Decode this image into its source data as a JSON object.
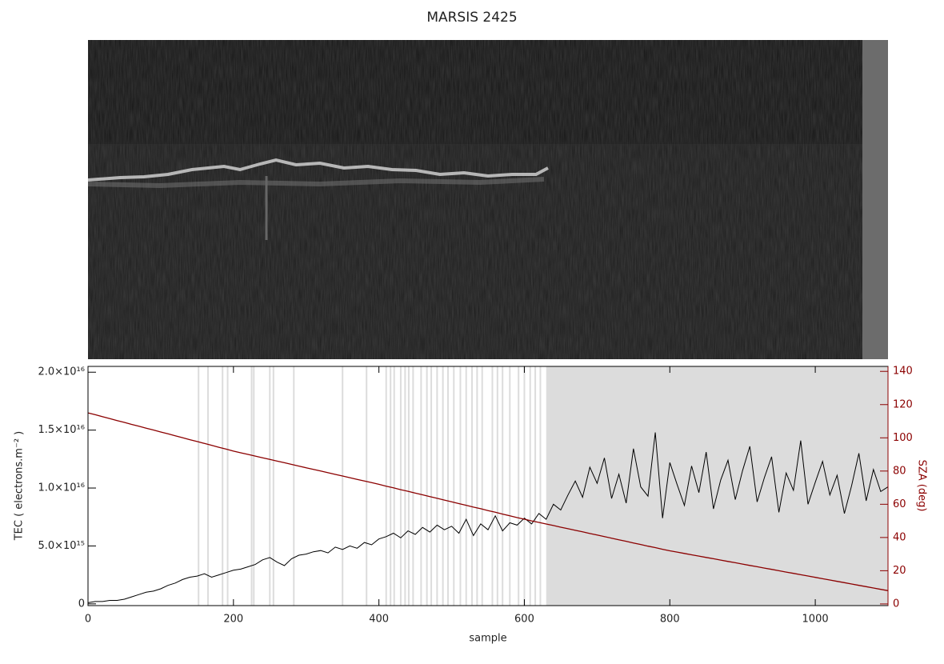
{
  "chart_data": {
    "type": "line",
    "title": "MARSIS 2425",
    "xlabel": "sample",
    "ylabel": "TEC ( electrons.m⁻² )",
    "y2label": "SZA (deg)",
    "xlim": [
      0,
      1100
    ],
    "xticks": [
      0,
      200,
      400,
      600,
      800,
      1000
    ],
    "ylim": [
      -150000000000000.0,
      2.05e+16
    ],
    "yticks": [
      0,
      {
        "value": 5000000000000000.0,
        "label": "5.0×10¹⁵"
      },
      {
        "value": 1e+16,
        "label": "1.0×10¹⁶"
      },
      {
        "value": 1.5e+16,
        "label": "1.5×10¹⁶"
      },
      {
        "value": 2e+16,
        "label": "2.0×10¹⁶"
      }
    ],
    "y2lim": [
      -1,
      143
    ],
    "y2ticks": [
      0,
      20,
      40,
      60,
      80,
      100,
      120,
      140
    ],
    "flagged_samples": [
      152,
      165,
      185,
      192,
      225,
      228,
      250,
      255,
      283,
      350,
      383,
      410,
      416,
      421,
      430,
      436,
      441,
      447,
      458,
      466,
      472,
      480,
      488,
      495,
      503,
      512,
      520,
      528,
      535,
      542,
      556,
      563,
      570,
      580,
      592,
      600,
      608,
      615,
      622
    ],
    "flagged_span": [
      630,
      1100
    ],
    "flag_color": "#dcdcdc",
    "x": [
      0,
      10,
      20,
      30,
      40,
      50,
      60,
      70,
      80,
      90,
      100,
      110,
      120,
      130,
      140,
      150,
      160,
      170,
      180,
      190,
      200,
      210,
      220,
      230,
      240,
      250,
      260,
      270,
      280,
      290,
      300,
      310,
      320,
      330,
      340,
      350,
      360,
      370,
      380,
      390,
      400,
      410,
      420,
      430,
      440,
      450,
      460,
      470,
      480,
      490,
      500,
      510,
      520,
      530,
      540,
      550,
      560,
      570,
      580,
      590,
      600,
      610,
      620,
      630,
      640,
      650,
      660,
      670,
      680,
      690,
      700,
      710,
      720,
      730,
      740,
      750,
      760,
      770,
      780,
      790,
      800,
      810,
      820,
      830,
      840,
      850,
      860,
      870,
      880,
      890,
      900,
      910,
      920,
      930,
      940,
      950,
      960,
      970,
      980,
      990,
      1000,
      1010,
      1020,
      1030,
      1040,
      1050,
      1060,
      1070,
      1080,
      1090,
      1100
    ],
    "series": [
      {
        "name": "TEC",
        "color": "#000000",
        "values": [
          100000000000000.0,
          200000000000000.0,
          200000000000000.0,
          300000000000000.0,
          300000000000000.0,
          400000000000000.0,
          600000000000000.0,
          800000000000000.0,
          1000000000000000.0,
          1100000000000000.0,
          1300000000000000.0,
          1600000000000000.0,
          1800000000000000.0,
          2100000000000000.0,
          2300000000000000.0,
          2400000000000000.0,
          2600000000000000.0,
          2300000000000000.0,
          2500000000000000.0,
          2700000000000000.0,
          2900000000000000.0,
          3000000000000000.0,
          3200000000000000.0,
          3400000000000000.0,
          3800000000000000.0,
          4000000000000000.0,
          3600000000000000.0,
          3300000000000000.0,
          3900000000000000.0,
          4200000000000000.0,
          4300000000000000.0,
          4500000000000000.0,
          4600000000000000.0,
          4400000000000000.0,
          4900000000000000.0,
          4700000000000000.0,
          5000000000000000.0,
          4800000000000000.0,
          5300000000000000.0,
          5100000000000000.0,
          5600000000000000.0,
          5800000000000000.0,
          6100000000000000.0,
          5700000000000000.0,
          6300000000000000.0,
          6000000000000000.0,
          6600000000000000.0,
          6200000000000000.0,
          6800000000000000.0,
          6400000000000000.0,
          6700000000000000.0,
          6100000000000000.0,
          7300000000000000.0,
          5900000000000000.0,
          6900000000000000.0,
          6400000000000000.0,
          7600000000000000.0,
          6300000000000000.0,
          7000000000000000.0,
          6800000000000000.0,
          7400000000000000.0,
          6900000000000000.0,
          7800000000000000.0,
          7300000000000000.0,
          8600000000000000.0,
          8100000000000000.0,
          9400000000000000.0,
          1.06e+16,
          9200000000000000.0,
          1.18e+16,
          1.04e+16,
          1.26e+16,
          9100000000000000.0,
          1.12e+16,
          8700000000000000.0,
          1.34e+16,
          1.01e+16,
          9300000000000000.0,
          1.48e+16,
          7400000000000000.0,
          1.22e+16,
          1.03e+16,
          8500000000000000.0,
          1.19e+16,
          9600000000000000.0,
          1.31e+16,
          8200000000000000.0,
          1.07e+16,
          1.24e+16,
          9000000000000000.0,
          1.15e+16,
          1.36e+16,
          8800000000000000.0,
          1.09e+16,
          1.27e+16,
          7900000000000000.0,
          1.13e+16,
          9800000000000000.0,
          1.41e+16,
          8600000000000000.0,
          1.05e+16,
          1.23e+16,
          9400000000000000.0,
          1.11e+16,
          7800000000000000.0,
          1.02e+16,
          1.3e+16,
          8900000000000000.0,
          1.16e+16,
          9700000000000000.0,
          1.01e+16
        ]
      },
      {
        "name": "SZA",
        "axis": "y2",
        "color": "#8b0000",
        "values": [
          115,
          113.9,
          112.7,
          111.6,
          110.4,
          109.3,
          108.1,
          107,
          105.8,
          104.7,
          103.5,
          102.4,
          101.2,
          100.1,
          98.9,
          97.8,
          96.6,
          95.5,
          94.3,
          93.2,
          92,
          91,
          90,
          89,
          88,
          87,
          86,
          85,
          84,
          83,
          82,
          81,
          80,
          79,
          78,
          77,
          76,
          75,
          74,
          73,
          72,
          70.9,
          69.9,
          68.8,
          67.8,
          66.7,
          65.7,
          64.6,
          63.6,
          62.5,
          61.5,
          60.4,
          59.4,
          58.3,
          57.3,
          56.2,
          55.2,
          54.1,
          53.1,
          52,
          51,
          50,
          49.1,
          48.1,
          47.2,
          46.2,
          45.3,
          44.3,
          43.4,
          42.4,
          41.5,
          40.5,
          39.6,
          38.6,
          37.7,
          36.7,
          35.8,
          34.8,
          33.9,
          32.9,
          32,
          31.2,
          30.4,
          29.6,
          28.8,
          28,
          27.2,
          26.4,
          25.6,
          24.8,
          24,
          23.2,
          22.4,
          21.6,
          20.8,
          20,
          19.2,
          18.4,
          17.6,
          16.8,
          16,
          15.2,
          14.4,
          13.6,
          12.8,
          12,
          11.2,
          10.4,
          9.6,
          8.8,
          8
        ]
      }
    ]
  }
}
